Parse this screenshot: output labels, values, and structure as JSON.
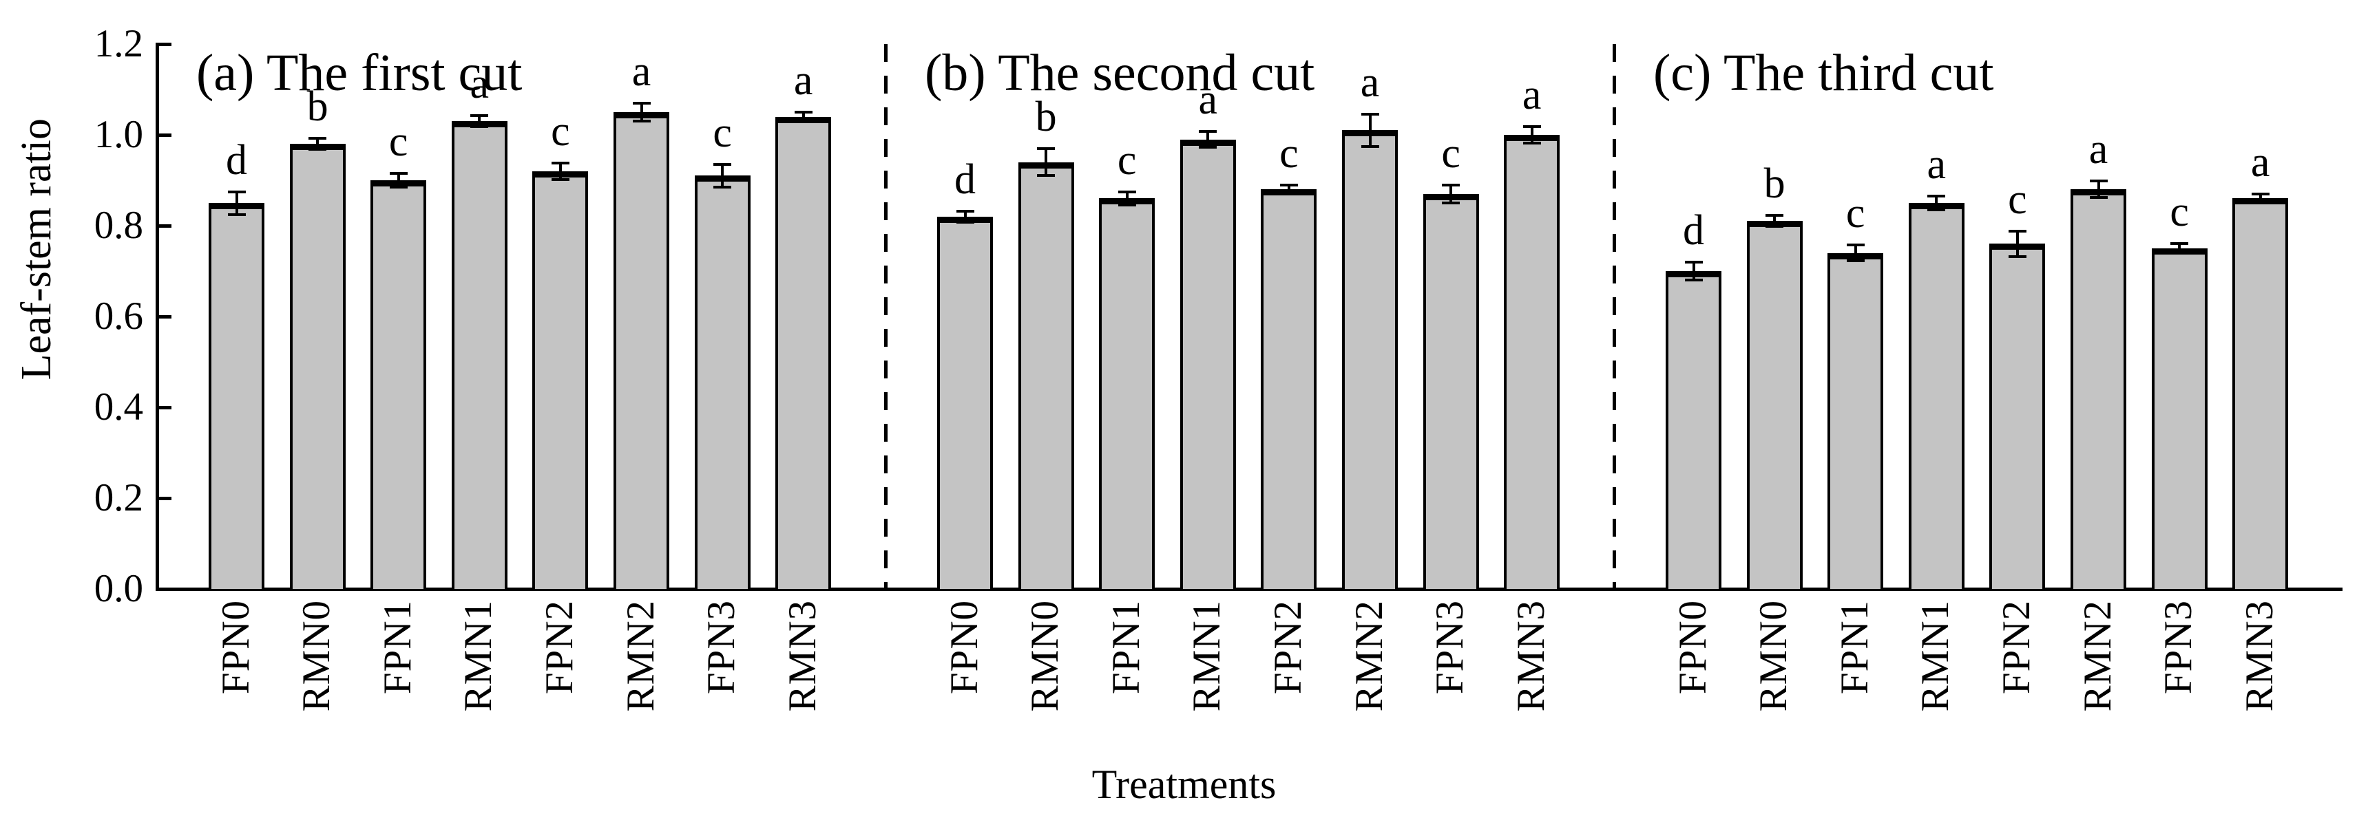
{
  "figure": {
    "ylabel": "Leaf-stem ratio",
    "xlabel": "Treatments",
    "background": "#ffffff",
    "bar_fill": "#c4c4c4",
    "bar_stroke": "#000000",
    "text_color": "#000000"
  },
  "chart_data": {
    "type": "bar",
    "categories": [
      "FPN0",
      "RMN0",
      "FPN1",
      "RMN1",
      "FPN2",
      "RMN2",
      "FPN3",
      "RMN3"
    ],
    "xlabel": "Treatments",
    "ylabel": "Leaf-stem ratio",
    "ylim": [
      0.0,
      1.2
    ],
    "yticks": [
      0.0,
      0.2,
      0.4,
      0.6,
      0.8,
      1.0,
      1.2
    ],
    "grid": false,
    "legend": "none",
    "error_caps": true,
    "panels": [
      {
        "label": "(a) The first cut",
        "values": [
          0.85,
          0.98,
          0.9,
          1.03,
          0.92,
          1.05,
          0.91,
          1.04
        ],
        "errors": [
          0.025,
          0.012,
          0.015,
          0.012,
          0.018,
          0.02,
          0.025,
          0.01
        ],
        "letters": [
          "d",
          "b",
          "c",
          "a",
          "c",
          "a",
          "c",
          "a"
        ]
      },
      {
        "label": "(b) The second cut",
        "values": [
          0.82,
          0.94,
          0.86,
          0.99,
          0.88,
          1.01,
          0.87,
          1.0
        ],
        "errors": [
          0.012,
          0.03,
          0.015,
          0.018,
          0.01,
          0.035,
          0.02,
          0.018
        ],
        "letters": [
          "d",
          "b",
          "c",
          "a",
          "c",
          "a",
          "c",
          "a"
        ]
      },
      {
        "label": "(c) The third cut",
        "values": [
          0.7,
          0.81,
          0.74,
          0.85,
          0.76,
          0.88,
          0.75,
          0.86
        ],
        "errors": [
          0.02,
          0.012,
          0.018,
          0.015,
          0.028,
          0.018,
          0.01,
          0.01
        ],
        "letters": [
          "d",
          "b",
          "c",
          "a",
          "c",
          "a",
          "c",
          "a"
        ]
      }
    ]
  }
}
